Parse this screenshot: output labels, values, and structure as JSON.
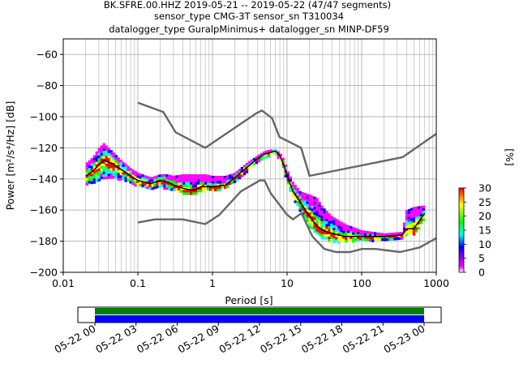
{
  "header": {
    "line1": "BK.SFRE.00.HHZ   2019-05-21 -- 2019-05-22  (47/47 segments)",
    "line2": "sensor_type CMG-3T sensor_sn T310034",
    "line3": "datalogger_type GuralpMinimus+ datalogger_sn MINP-DF59"
  },
  "chart_data": [
    {
      "type": "heatmap",
      "title": "",
      "xlabel": "Period [s]",
      "ylabel": "Power [m²/s⁴/Hz] [dB]",
      "xscale": "log",
      "xlim": [
        0.01,
        1000
      ],
      "ylim": [
        -200,
        -50
      ],
      "grid": true,
      "x_ticks": [
        "0.01",
        "0.1",
        "1",
        "10",
        "100",
        "1000"
      ],
      "y_ticks": [
        "−60",
        "−80",
        "−100",
        "−120",
        "−140",
        "−160",
        "−180",
        "−200"
      ],
      "colorbar": {
        "label": "[%]",
        "min": 0,
        "max": 30,
        "ticks": [
          "0",
          "5",
          "10",
          "15",
          "20",
          "25",
          "30"
        ],
        "colormap": [
          "#ffffff",
          "#ff00ff",
          "#0000ff",
          "#00ffff",
          "#00ff00",
          "#ffff00",
          "#ff0000"
        ]
      },
      "mode_curve": {
        "color": "#000000",
        "x": [
          0.02,
          0.025,
          0.03,
          0.035,
          0.045,
          0.06,
          0.08,
          0.1,
          0.15,
          0.2,
          0.25,
          0.3,
          0.4,
          0.5,
          0.6,
          0.7,
          0.8,
          1.0,
          1.5,
          2,
          3,
          4,
          5,
          6,
          7,
          8,
          9,
          10,
          12,
          15,
          20,
          25,
          30,
          40,
          60,
          100,
          200,
          350,
          400,
          500,
          700
        ],
        "y": [
          -138,
          -135,
          -131,
          -128,
          -130,
          -134,
          -138,
          -141,
          -143,
          -141,
          -142,
          -144,
          -146,
          -147,
          -147,
          -145,
          -145,
          -145,
          -144,
          -139,
          -132,
          -127,
          -124,
          -123,
          -122,
          -125,
          -131,
          -138,
          -148,
          -155,
          -164,
          -170,
          -173,
          -175,
          -177,
          -177,
          -177,
          -176,
          -172,
          -172,
          -162
        ]
      },
      "data_region": {
        "x": [
          0.02,
          0.025,
          0.03,
          0.035,
          0.045,
          0.06,
          0.08,
          0.1,
          0.15,
          0.2,
          0.25,
          0.3,
          0.4,
          0.5,
          0.6,
          0.7,
          0.8,
          1.0,
          1.5,
          2,
          3,
          4,
          5,
          6,
          7,
          8,
          9,
          10,
          12,
          15,
          20,
          25,
          30,
          40,
          60,
          100,
          200,
          350,
          400,
          500,
          700
        ],
        "upper": [
          -130,
          -126,
          -120,
          -117,
          -122,
          -128,
          -133,
          -136,
          -139,
          -137,
          -137,
          -138,
          -137,
          -137,
          -137,
          -137,
          -137,
          -138,
          -138,
          -136,
          -129,
          -125,
          -122,
          -121,
          -121,
          -123,
          -127,
          -134,
          -142,
          -148,
          -150,
          -152,
          -158,
          -164,
          -169,
          -173,
          -175,
          -174,
          -160,
          -158,
          -157
        ],
        "lower": [
          -143,
          -142,
          -141,
          -139,
          -139,
          -140,
          -142,
          -144,
          -146,
          -145,
          -146,
          -147,
          -149,
          -150,
          -149,
          -148,
          -147,
          -147,
          -146,
          -141,
          -134,
          -129,
          -126,
          -124,
          -124,
          -127,
          -134,
          -142,
          -152,
          -160,
          -170,
          -175,
          -178,
          -180,
          -180,
          -179,
          -179,
          -178,
          -176,
          -175,
          -166
        ]
      },
      "noise_models": {
        "color": "#666666",
        "upper": {
          "x": [
            0.1,
            0.22,
            0.32,
            0.8,
            3.8,
            4.6,
            6.3,
            7.9,
            15.4,
            20,
            354.8,
            1000
          ],
          "y": [
            -91,
            -97,
            -110,
            -120,
            -98,
            -96,
            -101,
            -113,
            -120,
            -138,
            -126,
            -111
          ]
        },
        "lower": {
          "x": [
            0.1,
            0.17,
            0.4,
            0.8,
            1.24,
            2.4,
            4.3,
            5,
            6,
            10,
            12,
            15.6,
            21.9,
            31.6,
            45,
            70,
            101,
            154,
            328,
            600,
            1000
          ],
          "y": [
            -168,
            -166,
            -166,
            -169,
            -163,
            -148,
            -141,
            -141,
            -149,
            -163,
            -166,
            -162,
            -177,
            -185,
            -187,
            -187,
            -185,
            -185,
            -187,
            -184,
            -178
          ]
        }
      }
    },
    {
      "type": "timeline",
      "x_ticks": [
        "05-22 00",
        "05-22 03",
        "05-22 06",
        "05-22 09",
        "05-22 12",
        "05-22 15",
        "05-22 18",
        "05-22 21",
        "05-23 00"
      ],
      "start_hour": 0,
      "end_hour": 24,
      "bars": [
        {
          "color": "#008000"
        },
        {
          "color": "#0000ff"
        }
      ]
    }
  ]
}
